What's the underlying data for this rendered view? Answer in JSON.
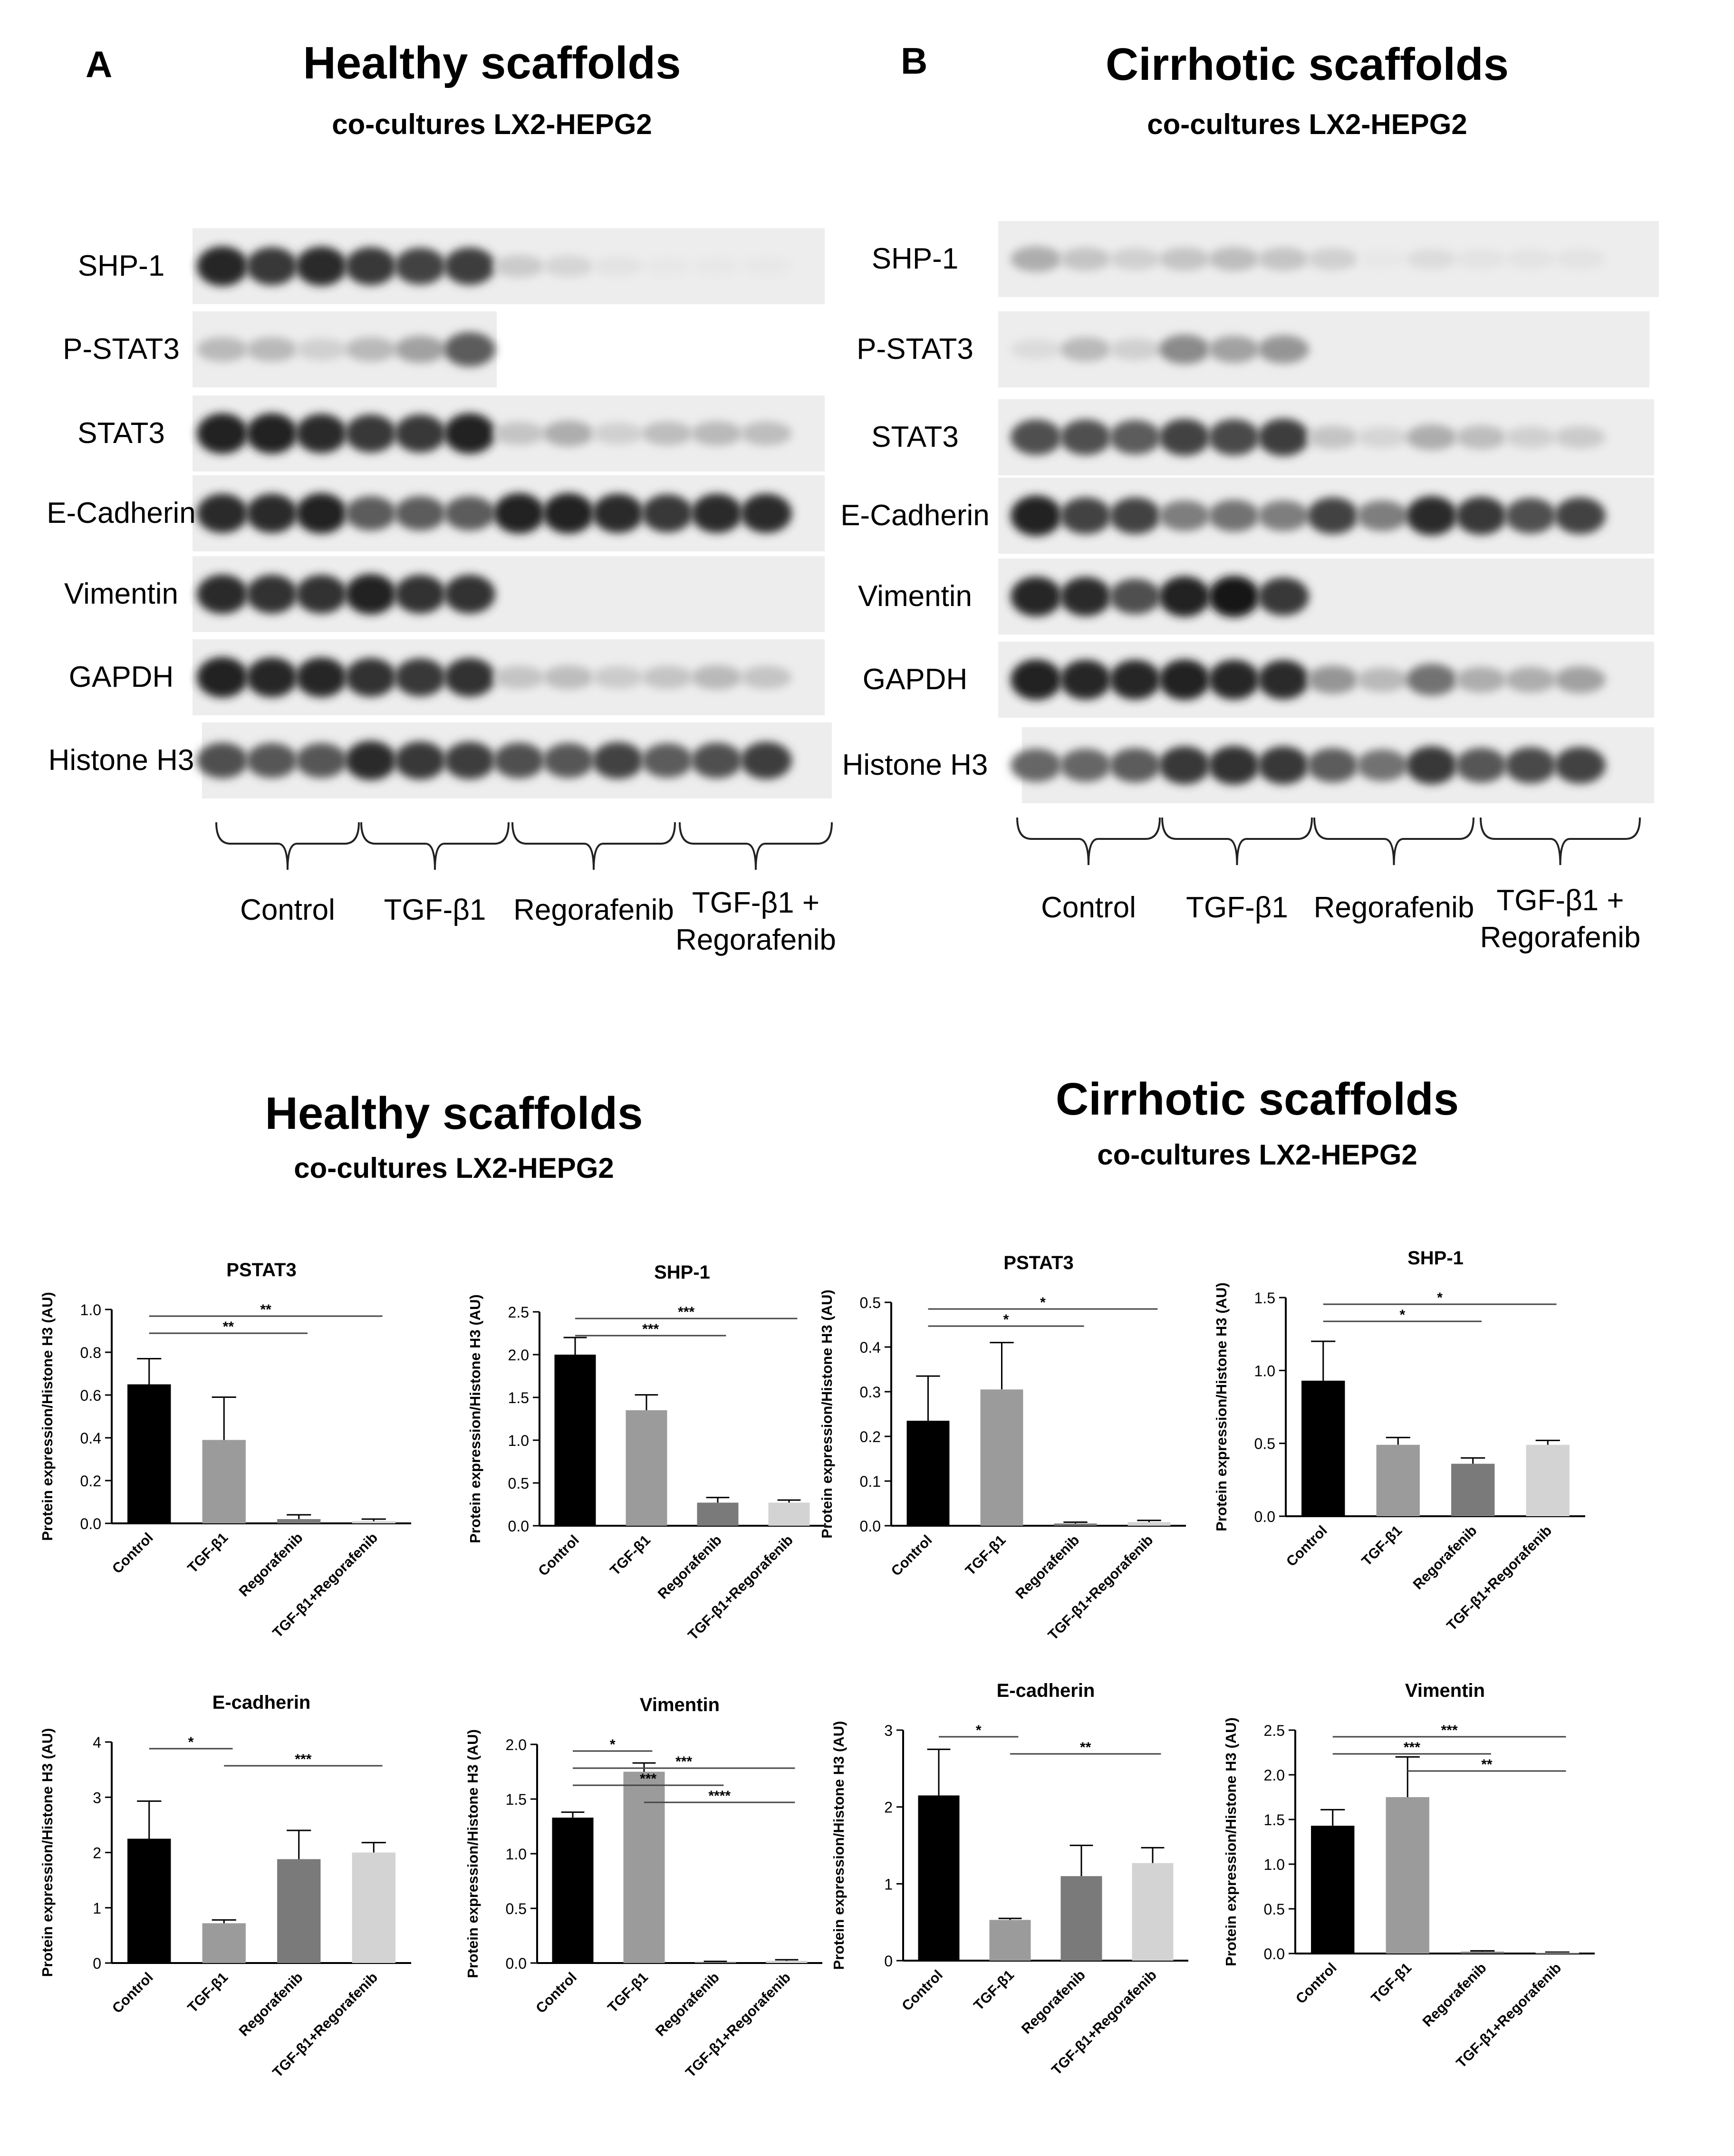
{
  "panels": [
    {
      "letter": "A",
      "title": "Healthy scaffolds",
      "subtitle": "co-cultures LX2-HEPG2",
      "blot_rows": [
        {
          "label": "SHP-1",
          "intensities": [
            0.92,
            0.85,
            0.9,
            0.85,
            0.8,
            0.82,
            0.22,
            0.18,
            0.12,
            0.1,
            0.1,
            0.1
          ]
        },
        {
          "label": "P-STAT3",
          "intensities": [
            0.3,
            0.3,
            0.2,
            0.3,
            0.4,
            0.7,
            0,
            0,
            0,
            0,
            0,
            0
          ]
        },
        {
          "label": "STAT3",
          "intensities": [
            0.95,
            0.95,
            0.9,
            0.85,
            0.85,
            0.95,
            0.25,
            0.35,
            0.2,
            0.28,
            0.3,
            0.28
          ]
        },
        {
          "label": "E-Cadherin",
          "intensities": [
            0.9,
            0.9,
            0.95,
            0.7,
            0.7,
            0.7,
            0.95,
            0.95,
            0.9,
            0.85,
            0.9,
            0.9
          ]
        },
        {
          "label": "Vimentin",
          "intensities": [
            0.9,
            0.88,
            0.88,
            0.95,
            0.88,
            0.88,
            0,
            0,
            0,
            0,
            0,
            0
          ]
        },
        {
          "label": "GAPDH",
          "intensities": [
            0.95,
            0.92,
            0.92,
            0.88,
            0.85,
            0.88,
            0.25,
            0.28,
            0.22,
            0.25,
            0.3,
            0.25
          ]
        },
        {
          "label": "Histone H3",
          "intensities": [
            0.75,
            0.72,
            0.72,
            0.9,
            0.85,
            0.82,
            0.75,
            0.72,
            0.8,
            0.7,
            0.75,
            0.82
          ]
        }
      ],
      "groups": [
        "Control",
        "TGF-β1",
        "Regorafenib",
        "TGF-β1 +\nRegorafenib"
      ]
    },
    {
      "letter": "B",
      "title": "Cirrhotic scaffolds",
      "subtitle": "co-cultures LX2-HEPG2",
      "blot_rows": [
        {
          "label": "SHP-1",
          "intensities": [
            0.35,
            0.25,
            0.2,
            0.25,
            0.28,
            0.25,
            0.2,
            0.1,
            0.15,
            0.12,
            0.12,
            0.12
          ]
        },
        {
          "label": "P-STAT3",
          "intensities": [
            0.15,
            0.3,
            0.2,
            0.5,
            0.4,
            0.45,
            0,
            0,
            0,
            0,
            0,
            0
          ]
        },
        {
          "label": "STAT3",
          "intensities": [
            0.75,
            0.75,
            0.7,
            0.8,
            0.78,
            0.82,
            0.25,
            0.18,
            0.35,
            0.28,
            0.2,
            0.22
          ]
        },
        {
          "label": "E-Cadherin",
          "intensities": [
            0.95,
            0.8,
            0.8,
            0.55,
            0.6,
            0.55,
            0.8,
            0.55,
            0.9,
            0.85,
            0.75,
            0.8
          ]
        },
        {
          "label": "Vimentin",
          "intensities": [
            0.92,
            0.9,
            0.75,
            0.95,
            0.98,
            0.85,
            0,
            0,
            0,
            0,
            0,
            0
          ]
        },
        {
          "label": "GAPDH",
          "intensities": [
            0.95,
            0.92,
            0.92,
            0.95,
            0.92,
            0.9,
            0.45,
            0.3,
            0.6,
            0.35,
            0.35,
            0.4
          ]
        },
        {
          "label": "Histone H3",
          "intensities": [
            0.65,
            0.65,
            0.7,
            0.85,
            0.88,
            0.85,
            0.7,
            0.6,
            0.85,
            0.72,
            0.78,
            0.8
          ]
        }
      ],
      "groups": [
        "Control",
        "TGF-β1",
        "Regorafenib",
        "TGF-β1 +\nRegorafenib"
      ]
    }
  ],
  "bar_sections": [
    {
      "title": "Healthy scaffolds",
      "subtitle": "co-cultures LX2-HEPG2"
    },
    {
      "title": "Cirrhotic scaffolds",
      "subtitle": "co-cultures LX2-HEPG2"
    }
  ],
  "colors": [
    "#000000",
    "#9b9b9b",
    "#7a7a7a",
    "#d3d3d3"
  ],
  "chart_data": [
    {
      "type": "bar",
      "title": "PSTAT3",
      "categories": [
        "Control",
        "TGF-β1",
        "Regorafenib",
        "TGF-β1+Regorafenib"
      ],
      "values": [
        0.65,
        0.39,
        0.02,
        0.01
      ],
      "errors": [
        0.12,
        0.2,
        0.02,
        0.01
      ],
      "ylabel": "Protein expression/Histone H3 (AU)",
      "ylim": [
        0,
        1.0
      ],
      "yticks": [
        "0.0",
        "0.2",
        "0.4",
        "0.6",
        "0.8",
        "1.0"
      ],
      "significance": [
        {
          "from": 0,
          "to": 3,
          "label": "**"
        },
        {
          "from": 0,
          "to": 2,
          "label": "**"
        }
      ]
    },
    {
      "type": "bar",
      "title": "SHP-1",
      "categories": [
        "Control",
        "TGF-β1",
        "Regorafenib",
        "TGF-β1+Regorafenib"
      ],
      "values": [
        2.0,
        1.35,
        0.27,
        0.27
      ],
      "errors": [
        0.2,
        0.18,
        0.06,
        0.03
      ],
      "ylabel": "Protein expression/Histone H3 (AU)",
      "ylim": [
        0,
        2.5
      ],
      "yticks": [
        "0.0",
        "0.5",
        "1.0",
        "1.5",
        "2.0",
        "2.5"
      ],
      "significance": [
        {
          "from": 0,
          "to": 3,
          "label": "***"
        },
        {
          "from": 0,
          "to": 2,
          "label": "***"
        }
      ]
    },
    {
      "type": "bar",
      "title": "PSTAT3",
      "categories": [
        "Control",
        "TGF-β1",
        "Regorafenib",
        "TGF-β1+Regorafenib"
      ],
      "values": [
        0.235,
        0.305,
        0.005,
        0.008
      ],
      "errors": [
        0.1,
        0.105,
        0.003,
        0.004
      ],
      "ylabel": "Protein expression/Histone H3 (AU)",
      "ylim": [
        0,
        0.5
      ],
      "yticks": [
        "0.0",
        "0.1",
        "0.2",
        "0.3",
        "0.4",
        "0.5"
      ],
      "significance": [
        {
          "from": 0,
          "to": 3,
          "label": "*"
        },
        {
          "from": 0,
          "to": 2,
          "label": "*"
        }
      ]
    },
    {
      "type": "bar",
      "title": "SHP-1",
      "categories": [
        "Control",
        "TGF-β1",
        "Regorafenib",
        "TGF-β1+Regorafenib"
      ],
      "values": [
        0.93,
        0.49,
        0.36,
        0.49
      ],
      "errors": [
        0.27,
        0.05,
        0.04,
        0.03
      ],
      "ylabel": "Protein expression/Histone H3 (AU)",
      "ylim": [
        0,
        1.5
      ],
      "yticks": [
        "0.0",
        "0.5",
        "1.0",
        "1.5"
      ],
      "significance": [
        {
          "from": 0,
          "to": 3,
          "label": "*"
        },
        {
          "from": 0,
          "to": 2,
          "label": "*"
        }
      ]
    },
    {
      "type": "bar",
      "title": "E-cadherin",
      "categories": [
        "Control",
        "TGF-β1",
        "Regorafenib",
        "TGF-β1+Regorafenib"
      ],
      "values": [
        2.25,
        0.72,
        1.88,
        2.0
      ],
      "errors": [
        0.68,
        0.06,
        0.52,
        0.18
      ],
      "ylabel": "Protein expression/Histone H3 (AU)",
      "ylim": [
        0,
        4
      ],
      "yticks": [
        "0",
        "1",
        "2",
        "3",
        "4"
      ],
      "significance": [
        {
          "from": 0,
          "to": 1,
          "label": "*"
        },
        {
          "from": 1,
          "to": 3,
          "label": "***"
        }
      ]
    },
    {
      "type": "bar",
      "title": "Vimentin",
      "categories": [
        "Control",
        "TGF-β1",
        "Regorafenib",
        "TGF-β1+Regorafenib"
      ],
      "values": [
        1.33,
        1.75,
        0.01,
        0.02
      ],
      "errors": [
        0.05,
        0.08,
        0.005,
        0.01
      ],
      "ylabel": "Protein expression/Histone H3 (AU)",
      "ylim": [
        0,
        2.0
      ],
      "yticks": [
        "0.0",
        "0.5",
        "1.0",
        "1.5",
        "2.0"
      ],
      "significance": [
        {
          "from": 0,
          "to": 1,
          "label": "*"
        },
        {
          "from": 0,
          "to": 3,
          "label": "***"
        },
        {
          "from": 0,
          "to": 2,
          "label": "***"
        },
        {
          "from": 1,
          "to": 3,
          "label": "****"
        }
      ]
    },
    {
      "type": "bar",
      "title": "E-cadherin",
      "categories": [
        "Control",
        "TGF-β1",
        "Regorafenib",
        "TGF-β1+Regorafenib"
      ],
      "values": [
        2.15,
        0.53,
        1.1,
        1.27
      ],
      "errors": [
        0.6,
        0.02,
        0.4,
        0.2
      ],
      "ylabel": "Protein expression/Histone H3 (AU)",
      "ylim": [
        0,
        3
      ],
      "yticks": [
        "0",
        "1",
        "2",
        "3"
      ],
      "significance": [
        {
          "from": 0,
          "to": 1,
          "label": "*"
        },
        {
          "from": 1,
          "to": 3,
          "label": "**"
        }
      ]
    },
    {
      "type": "bar",
      "title": "Vimentin",
      "categories": [
        "Control",
        "TGF-β1",
        "Regorafenib",
        "TGF-β1+Regorafenib"
      ],
      "values": [
        1.43,
        1.75,
        0.02,
        0.01
      ],
      "errors": [
        0.18,
        0.45,
        0.01,
        0.005
      ],
      "ylabel": "Protein expression/Histone H3 (AU)",
      "ylim": [
        0,
        2.5
      ],
      "yticks": [
        "0.0",
        "0.5",
        "1.0",
        "1.5",
        "2.0",
        "2.5"
      ],
      "significance": [
        {
          "from": 0,
          "to": 3,
          "label": "***"
        },
        {
          "from": 0,
          "to": 2,
          "label": "***"
        },
        {
          "from": 1,
          "to": 3,
          "label": "**"
        }
      ]
    }
  ]
}
